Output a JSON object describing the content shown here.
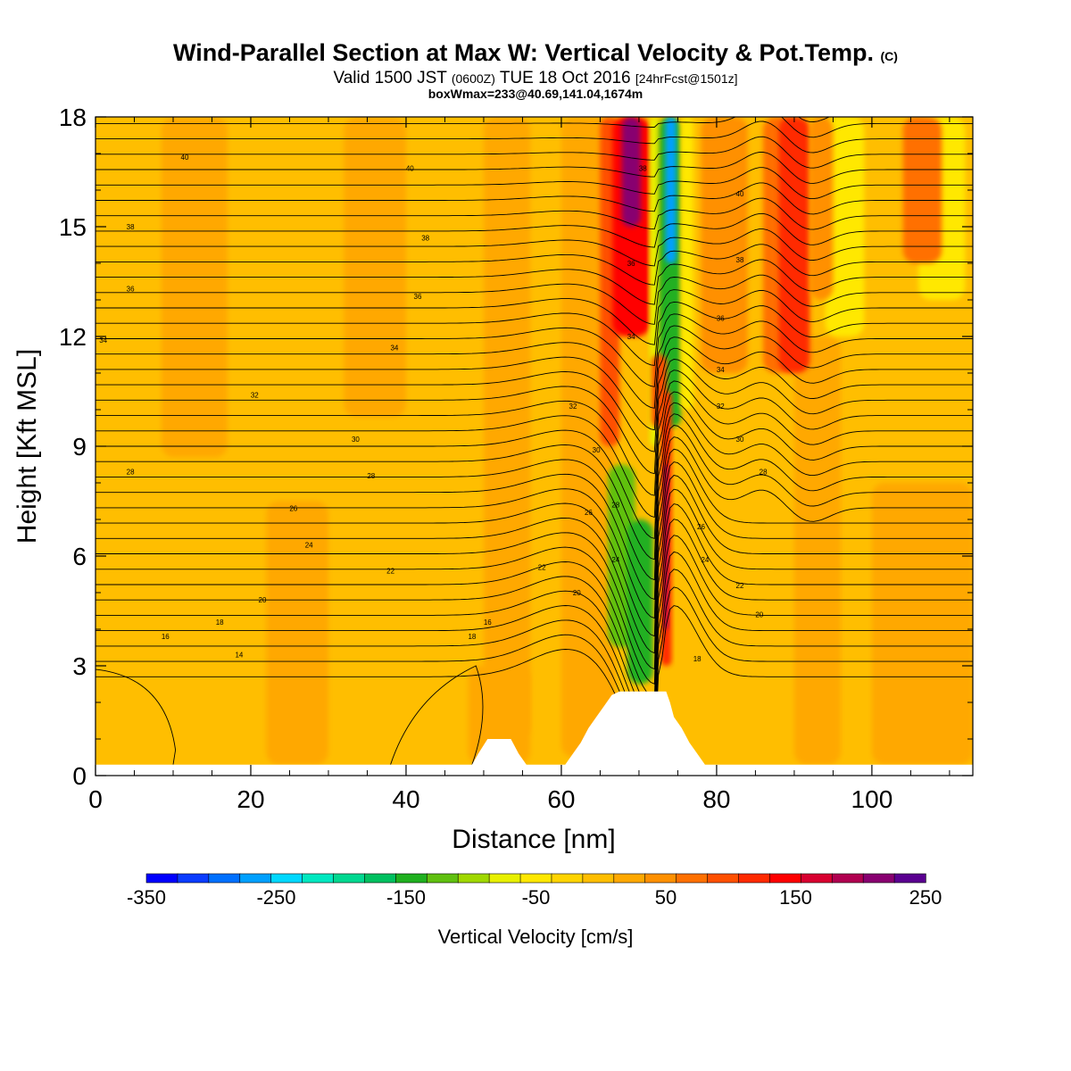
{
  "title": {
    "main": "Wind-Parallel Section at Max W: Vertical Velocity & Pot.Temp.",
    "copyright": "(C)",
    "valid_a": "Valid 1500 JST",
    "valid_b": "(0600Z)",
    "valid_c": "TUE 18 Oct 2016",
    "valid_d": "[24hrFcst@1501z]",
    "box": "boxWmax=233@40.69,141.04,1674m"
  },
  "chart_data": {
    "type": "heatmap",
    "xlabel": "Distance [nm]",
    "ylabel": "Height [Kft MSL]",
    "xlim": [
      0,
      113
    ],
    "ylim": [
      0,
      18
    ],
    "x_ticks": [
      0,
      20,
      40,
      60,
      80,
      100
    ],
    "y_ticks": [
      0,
      3,
      6,
      9,
      12,
      15,
      18
    ],
    "colorbar": {
      "label": "Vertical Velocity [cm/s]",
      "range": [
        -350,
        250
      ],
      "step": 25,
      "tick_labels": [
        -350,
        -250,
        -150,
        -50,
        50,
        150,
        250
      ],
      "colors": [
        "#0000ff",
        "#0a3cff",
        "#0070ff",
        "#00a0ff",
        "#00d8ff",
        "#00e8c0",
        "#00d890",
        "#00c060",
        "#20b020",
        "#60c010",
        "#a0d800",
        "#e8f000",
        "#ffe800",
        "#ffd400",
        "#ffbe00",
        "#ffa800",
        "#ff9000",
        "#ff7000",
        "#ff5000",
        "#ff2a00",
        "#ff0000",
        "#d80030",
        "#b00050",
        "#880070",
        "#5a0090"
      ]
    },
    "terrain": [
      {
        "x": 0,
        "h": 0.3
      },
      {
        "x": 48.5,
        "h": 0.3
      },
      {
        "x": 49.3,
        "h": 0.6
      },
      {
        "x": 50.5,
        "h": 1.0
      },
      {
        "x": 53.5,
        "h": 1.0
      },
      {
        "x": 54.5,
        "h": 0.6
      },
      {
        "x": 55.5,
        "h": 0.3
      },
      {
        "x": 60.5,
        "h": 0.3
      },
      {
        "x": 61.5,
        "h": 0.6
      },
      {
        "x": 62.5,
        "h": 0.9
      },
      {
        "x": 63.5,
        "h": 1.3
      },
      {
        "x": 64.5,
        "h": 1.6
      },
      {
        "x": 65.5,
        "h": 1.9
      },
      {
        "x": 66.5,
        "h": 2.2
      },
      {
        "x": 67.5,
        "h": 2.3
      },
      {
        "x": 73.5,
        "h": 2.3
      },
      {
        "x": 74,
        "h": 2.0
      },
      {
        "x": 74.5,
        "h": 1.6
      },
      {
        "x": 75.5,
        "h": 1.3
      },
      {
        "x": 76.5,
        "h": 0.9
      },
      {
        "x": 77.5,
        "h": 0.6
      },
      {
        "x": 78.5,
        "h": 0.3
      },
      {
        "x": 113,
        "h": 0.3
      }
    ],
    "theta_contour_labels": [
      {
        "x": 11.5,
        "y": 16.9,
        "text": "40"
      },
      {
        "x": 40.5,
        "y": 16.6,
        "text": "40"
      },
      {
        "x": 4.5,
        "y": 15.0,
        "text": "38"
      },
      {
        "x": 42.5,
        "y": 14.7,
        "text": "38"
      },
      {
        "x": 4.5,
        "y": 13.3,
        "text": "36"
      },
      {
        "x": 41.5,
        "y": 13.1,
        "text": "36"
      },
      {
        "x": 1.0,
        "y": 11.9,
        "text": "34"
      },
      {
        "x": 38.5,
        "y": 11.7,
        "text": "34"
      },
      {
        "x": 20.5,
        "y": 10.4,
        "text": "32"
      },
      {
        "x": 61.5,
        "y": 10.1,
        "text": "32"
      },
      {
        "x": 33.5,
        "y": 9.2,
        "text": "30"
      },
      {
        "x": 64.5,
        "y": 8.9,
        "text": "30"
      },
      {
        "x": 4.5,
        "y": 8.3,
        "text": "28"
      },
      {
        "x": 35.5,
        "y": 8.2,
        "text": "28"
      },
      {
        "x": 25.5,
        "y": 7.3,
        "text": "26"
      },
      {
        "x": 63.5,
        "y": 7.2,
        "text": "26"
      },
      {
        "x": 27.5,
        "y": 6.3,
        "text": "24"
      },
      {
        "x": 38.0,
        "y": 5.6,
        "text": "22"
      },
      {
        "x": 21.5,
        "y": 4.8,
        "text": "20"
      },
      {
        "x": 16.0,
        "y": 4.2,
        "text": "18"
      },
      {
        "x": 9.0,
        "y": 3.8,
        "text": "16"
      },
      {
        "x": 18.5,
        "y": 3.3,
        "text": "14"
      },
      {
        "x": 50.5,
        "y": 4.2,
        "text": "16"
      },
      {
        "x": 57.5,
        "y": 5.7,
        "text": "22"
      },
      {
        "x": 62.0,
        "y": 5.0,
        "text": "20"
      },
      {
        "x": 48.5,
        "y": 3.8,
        "text": "18"
      },
      {
        "x": 70.5,
        "y": 16.6,
        "text": "38"
      },
      {
        "x": 69.0,
        "y": 14.0,
        "text": "36"
      },
      {
        "x": 69.0,
        "y": 12.0,
        "text": "34"
      },
      {
        "x": 67.0,
        "y": 7.4,
        "text": "28"
      },
      {
        "x": 67.0,
        "y": 5.9,
        "text": "24"
      },
      {
        "x": 83.0,
        "y": 15.9,
        "text": "40"
      },
      {
        "x": 83.0,
        "y": 14.1,
        "text": "38"
      },
      {
        "x": 80.5,
        "y": 12.5,
        "text": "36"
      },
      {
        "x": 80.5,
        "y": 11.1,
        "text": "34"
      },
      {
        "x": 80.5,
        "y": 10.1,
        "text": "32"
      },
      {
        "x": 83.0,
        "y": 9.2,
        "text": "30"
      },
      {
        "x": 86.0,
        "y": 8.3,
        "text": "28"
      },
      {
        "x": 78.0,
        "y": 6.8,
        "text": "26"
      },
      {
        "x": 78.5,
        "y": 5.9,
        "text": "24"
      },
      {
        "x": 83.0,
        "y": 5.2,
        "text": "22"
      },
      {
        "x": 85.5,
        "y": 4.4,
        "text": "20"
      },
      {
        "x": 77.5,
        "y": 3.2,
        "text": "18"
      }
    ]
  }
}
